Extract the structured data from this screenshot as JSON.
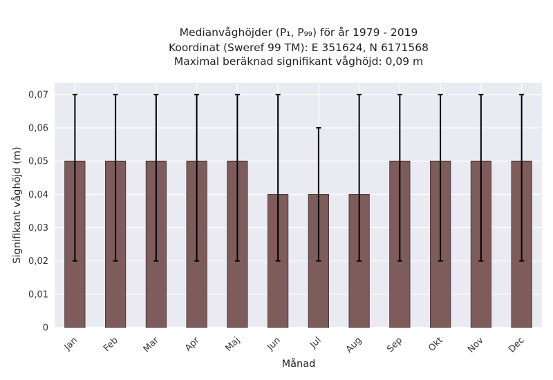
{
  "chart_data": {
    "type": "bar",
    "title_lines": [
      "Medianvåghöjder (P₁, P₉₉) för år 1979 - 2019",
      "Koordinat (Sweref 99 TM): E 351624, N 6171568",
      "Maximal beräknad signifikant våghöjd: 0,09 m"
    ],
    "xlabel": "Månad",
    "ylabel": "Signifikant våghöjd (m)",
    "categories": [
      "Jan",
      "Feb",
      "Mar",
      "Apr",
      "Maj",
      "Jun",
      "Jul",
      "Aug",
      "Sep",
      "Okt",
      "Nov",
      "Dec"
    ],
    "values": [
      0.05,
      0.05,
      0.05,
      0.05,
      0.05,
      0.04,
      0.04,
      0.04,
      0.05,
      0.05,
      0.05,
      0.05
    ],
    "err_low": [
      0.02,
      0.02,
      0.02,
      0.02,
      0.02,
      0.02,
      0.02,
      0.02,
      0.02,
      0.02,
      0.02,
      0.02
    ],
    "err_high": [
      0.07,
      0.07,
      0.07,
      0.07,
      0.07,
      0.07,
      0.06,
      0.07,
      0.07,
      0.07,
      0.07,
      0.07
    ],
    "ylim": [
      0,
      0.0735
    ],
    "yticks": [
      0,
      0.01,
      0.02,
      0.03,
      0.04,
      0.05,
      0.06,
      0.07
    ],
    "ytick_labels": [
      "0",
      "0,01",
      "0,02",
      "0,03",
      "0,04",
      "0,05",
      "0,06",
      "0,07"
    ],
    "grid": true,
    "colors": {
      "bar": "#7f5c5c",
      "bar_edge": "#3a2a2a",
      "errorbar": "#000000",
      "plot_background": "#eaeaf2",
      "grid": "#ffffff"
    }
  }
}
